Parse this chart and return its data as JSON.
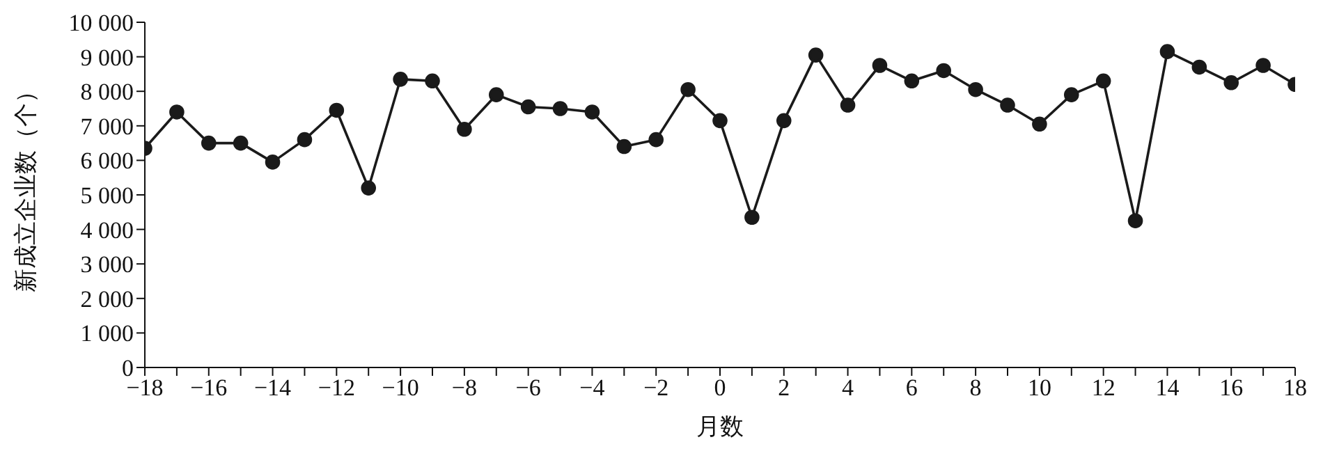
{
  "chart_data": {
    "type": "line",
    "xlabel": "月数",
    "ylabel": "新成立企业数（个）",
    "x": [
      -18,
      -17,
      -16,
      -15,
      -14,
      -13,
      -12,
      -11,
      -10,
      -9,
      -8,
      -7,
      -6,
      -5,
      -4,
      -3,
      -2,
      -1,
      0,
      1,
      2,
      3,
      4,
      5,
      6,
      7,
      8,
      9,
      10,
      11,
      12,
      13,
      14,
      15,
      16,
      17,
      18
    ],
    "series": [
      {
        "color": "#1a1a1a",
        "values": [
          6350,
          7400,
          6500,
          6500,
          5950,
          6600,
          7450,
          5200,
          8350,
          8300,
          6900,
          7900,
          7550,
          7500,
          7400,
          6400,
          6600,
          8050,
          7150,
          4350,
          7150,
          9050,
          7600,
          8750,
          8300,
          8600,
          8050,
          7600,
          7050,
          7900,
          8300,
          4250,
          9150,
          8700,
          8250,
          8750,
          8200
        ]
      }
    ],
    "xlim": [
      -18,
      18
    ],
    "xticks": [
      {
        "value": -18,
        "label": "−18"
      },
      {
        "value": -17,
        "label": null
      },
      {
        "value": -16,
        "label": "−16"
      },
      {
        "value": -15,
        "label": null
      },
      {
        "value": -14,
        "label": "−14"
      },
      {
        "value": -13,
        "label": null
      },
      {
        "value": -12,
        "label": "−12"
      },
      {
        "value": -11,
        "label": null
      },
      {
        "value": -10,
        "label": "−10"
      },
      {
        "value": -9,
        "label": null
      },
      {
        "value": -8,
        "label": "−8"
      },
      {
        "value": -7,
        "label": null
      },
      {
        "value": -6,
        "label": "−6"
      },
      {
        "value": -5,
        "label": null
      },
      {
        "value": -4,
        "label": "−4"
      },
      {
        "value": -3,
        "label": null
      },
      {
        "value": -2,
        "label": "−2"
      },
      {
        "value": -1,
        "label": null
      },
      0,
      {
        "value": 1,
        "label": null
      },
      2,
      {
        "value": 3,
        "label": null
      },
      4,
      {
        "value": 5,
        "label": null
      },
      6,
      {
        "value": 7,
        "label": null
      },
      8,
      {
        "value": 9,
        "label": null
      },
      10,
      {
        "value": 11,
        "label": null
      },
      12,
      {
        "value": 13,
        "label": null
      },
      14,
      {
        "value": 15,
        "label": null
      },
      16,
      {
        "value": 17,
        "label": null
      },
      18
    ],
    "ylim": [
      0,
      10000
    ],
    "yticks": [
      0,
      {
        "value": 1000,
        "label": "1 000"
      },
      {
        "value": 2000,
        "label": "2 000"
      },
      {
        "value": 3000,
        "label": "3 000"
      },
      {
        "value": 4000,
        "label": "4 000"
      },
      {
        "value": 5000,
        "label": "5 000"
      },
      {
        "value": 6000,
        "label": "6 000"
      },
      {
        "value": 7000,
        "label": "7 000"
      },
      {
        "value": 8000,
        "label": "8 000"
      },
      {
        "value": 9000,
        "label": "9 000"
      },
      {
        "value": 10000,
        "label": "10 000"
      }
    ],
    "grid": false,
    "legend": false,
    "marker": "circle",
    "line_style": "solid"
  }
}
